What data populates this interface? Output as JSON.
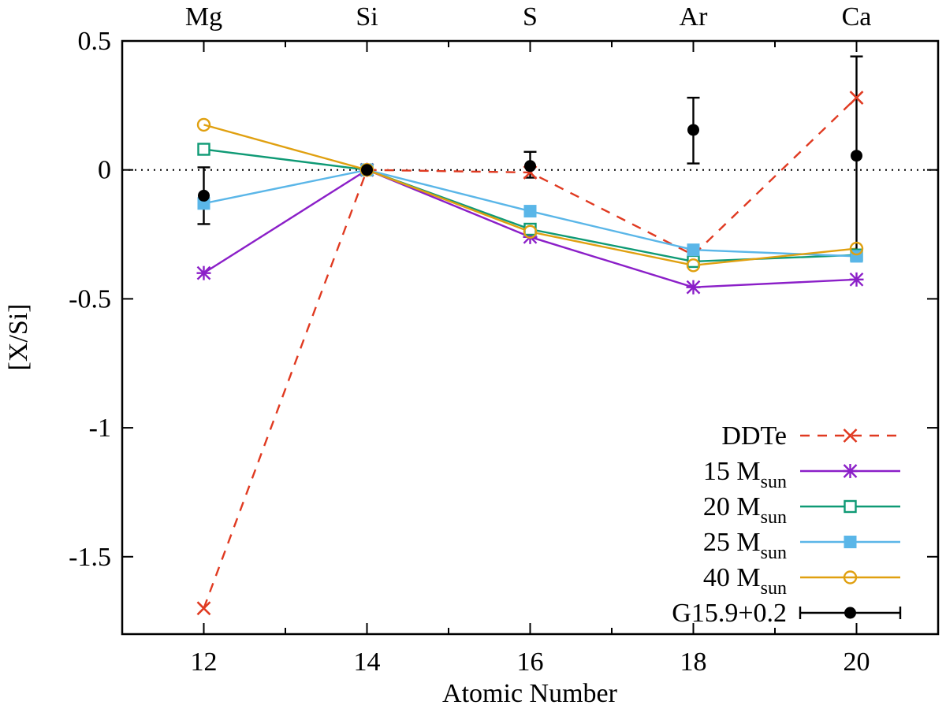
{
  "chart_data": {
    "type": "line",
    "title": "",
    "xlabel": "Atomic Number",
    "ylabel": "[X/Si]",
    "xlim": [
      11,
      21
    ],
    "ylim": [
      -1.8,
      0.5
    ],
    "x_ticks": [
      12,
      14,
      16,
      18,
      20
    ],
    "x_minor_ticks": [
      11,
      13,
      15,
      17,
      19,
      21
    ],
    "y_ticks": [
      0.5,
      0,
      -0.5,
      -1,
      -1.5
    ],
    "y_tick_labels": [
      "0.5",
      "0",
      "-0.5",
      "-1",
      "-1.5"
    ],
    "x_tick_labels": [
      "12",
      "14",
      "16",
      "18",
      "20"
    ],
    "top_axis_labels": [
      {
        "x": 12,
        "label": "Mg"
      },
      {
        "x": 14,
        "label": "Si"
      },
      {
        "x": 16,
        "label": "S"
      },
      {
        "x": 18,
        "label": "Ar"
      },
      {
        "x": 20,
        "label": "Ca"
      }
    ],
    "reference_line": {
      "y": 0,
      "style": "dotted"
    },
    "grid": false,
    "legend_position": "bottom-right",
    "x": [
      12,
      14,
      16,
      18,
      20
    ],
    "series": [
      {
        "name": "DDTe",
        "label_main": "DDTe",
        "label_sub": "",
        "color": "#e03a21",
        "line": "dashed",
        "marker": "cross",
        "values": [
          -1.7,
          0.0,
          -0.01,
          -0.33,
          0.28
        ]
      },
      {
        "name": "15 Msun",
        "label_main": "15 M",
        "label_sub": "sun",
        "color": "#8b1fc8",
        "line": "solid",
        "marker": "star",
        "values": [
          -0.4,
          0.0,
          -0.26,
          -0.455,
          -0.425
        ]
      },
      {
        "name": "20 Msun",
        "label_main": "20 M",
        "label_sub": "sun",
        "color": "#0f9a75",
        "line": "solid",
        "marker": "open-square",
        "values": [
          0.08,
          0.0,
          -0.23,
          -0.355,
          -0.33
        ]
      },
      {
        "name": "25 Msun",
        "label_main": "25 M",
        "label_sub": "sun",
        "color": "#5ab6e8",
        "line": "solid",
        "marker": "filled-square",
        "values": [
          -0.13,
          0.0,
          -0.16,
          -0.31,
          -0.335
        ]
      },
      {
        "name": "40 Msun",
        "label_main": "40 M",
        "label_sub": "sun",
        "color": "#e0a010",
        "line": "solid",
        "marker": "open-circle",
        "values": [
          0.175,
          0.0,
          -0.24,
          -0.37,
          -0.305
        ]
      },
      {
        "name": "G15.9+0.2",
        "label_main": "G15.9+0.2",
        "label_sub": "",
        "color": "#000000",
        "line": "none",
        "marker": "filled-circle",
        "values": [
          -0.1,
          0.0,
          0.015,
          0.155,
          0.055
        ],
        "err_low": [
          0.11,
          0.0,
          0.045,
          0.13,
          0.39
        ],
        "err_high": [
          0.11,
          0.0,
          0.055,
          0.125,
          0.385
        ]
      }
    ]
  }
}
